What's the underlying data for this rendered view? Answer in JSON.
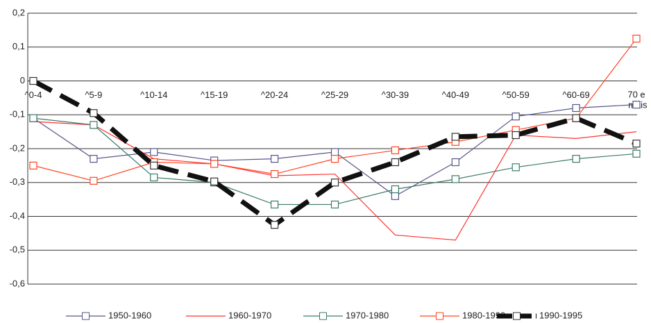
{
  "chart_data": {
    "type": "line",
    "categories": [
      "^0-4",
      "^5-9",
      "^10-14",
      "^15-19",
      "^20-24",
      "^25-29",
      "^30-39",
      "^40-49",
      "^50-59",
      "^60-69",
      "70 e mais"
    ],
    "series": [
      {
        "name": "1950-1960",
        "color": "#55558a",
        "marker": true,
        "values": [
          -0.11,
          -0.23,
          -0.21,
          -0.235,
          -0.23,
          -0.21,
          -0.34,
          -0.24,
          -0.105,
          -0.08,
          -0.07
        ]
      },
      {
        "name": "1960-1970",
        "color": "#ff3030",
        "marker": false,
        "values": [
          -0.12,
          -0.13,
          -0.23,
          -0.245,
          -0.28,
          -0.275,
          -0.455,
          -0.47,
          -0.16,
          -0.17,
          -0.15
        ]
      },
      {
        "name": "1970-1980",
        "color": "#3a7a6a",
        "marker": true,
        "values": [
          -0.11,
          -0.13,
          -0.285,
          -0.3,
          -0.365,
          -0.365,
          -0.32,
          -0.29,
          -0.255,
          -0.23,
          -0.215
        ]
      },
      {
        "name": "1980-1990",
        "color": "#ff4422",
        "marker": true,
        "values": [
          -0.25,
          -0.295,
          -0.24,
          -0.245,
          -0.275,
          -0.23,
          -0.205,
          -0.18,
          -0.145,
          -0.11,
          0.125
        ]
      },
      {
        "name": "1990-1995",
        "color": "#111111",
        "marker": true,
        "dashed": true,
        "values": [
          0,
          -0.095,
          -0.25,
          -0.297,
          -0.425,
          -0.3,
          -0.24,
          -0.165,
          -0.16,
          -0.11,
          -0.185
        ]
      }
    ],
    "ylim": [
      -0.6,
      0.2
    ],
    "yticks": [
      {
        "value": -0.6,
        "label": "-0,6"
      },
      {
        "value": -0.5,
        "label": "-0,5"
      },
      {
        "value": -0.4,
        "label": "-0,4"
      },
      {
        "value": -0.3,
        "label": "-0,3"
      },
      {
        "value": -0.2,
        "label": "-0,2"
      },
      {
        "value": -0.1,
        "label": "-0,1"
      },
      0,
      {
        "value": 0.1,
        "label": "0,1"
      },
      {
        "value": 0.2,
        "label": "0,2"
      }
    ],
    "grid": true,
    "legend": "bottom"
  }
}
